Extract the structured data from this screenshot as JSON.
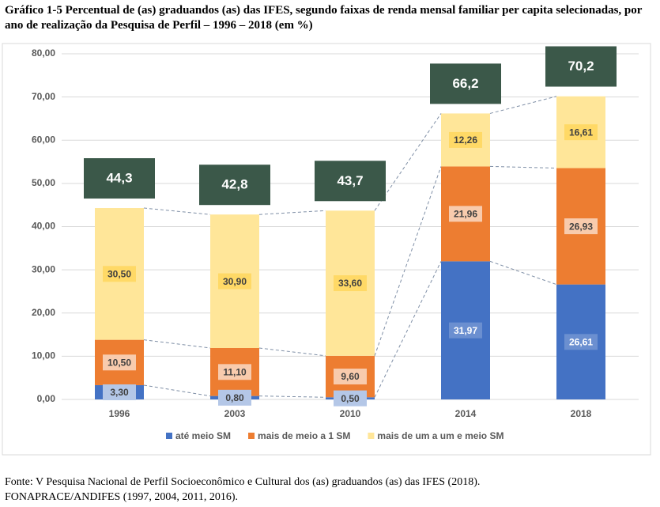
{
  "chart_data": {
    "type": "stacked-bar",
    "title": "Gráfico 1-5 Percentual  de (as) graduandos (as) das IFES, segundo faixas de renda mensal familiar per capita selecionadas, por ano de realização da Pesquisa de Perfil – 1996 – 2018 (em %)",
    "categories": [
      "1996",
      "2003",
      "2010",
      "2014",
      "2018"
    ],
    "series": [
      {
        "name": "até meio SM",
        "color": "#4472c4",
        "label_color": "#b4c7e7",
        "values": [
          3.3,
          0.8,
          0.5,
          31.97,
          26.61
        ],
        "value_labels": [
          "3,30",
          "0,80",
          "0,50",
          "31,97",
          "26,61"
        ]
      },
      {
        "name": "mais de meio a 1 SM",
        "color": "#ed7d31",
        "label_color": "#f8cbad",
        "values": [
          10.5,
          11.1,
          9.6,
          21.96,
          26.93
        ],
        "value_labels": [
          "10,50",
          "11,10",
          "9,60",
          "21,96",
          "26,93"
        ]
      },
      {
        "name": "mais de um a um e meio SM",
        "color": "#ffe699",
        "label_color": "#ffd966",
        "values": [
          30.5,
          30.9,
          33.6,
          12.26,
          16.61
        ],
        "value_labels": [
          "30,50",
          "30,90",
          "33,60",
          "12,26",
          "16,61"
        ]
      }
    ],
    "totals": {
      "color": "#3b5849",
      "values": [
        44.3,
        42.8,
        43.7,
        66.2,
        70.2
      ],
      "value_labels": [
        "44,3",
        "42,8",
        "43,7",
        "66,2",
        "70,2"
      ]
    },
    "ylim": [
      0,
      80
    ],
    "yticks": [
      {
        "value": 0,
        "label": "0,00"
      },
      {
        "value": 10,
        "label": "10,00"
      },
      {
        "value": 20,
        "label": "20,00"
      },
      {
        "value": 30,
        "label": "30,00"
      },
      {
        "value": 40,
        "label": "40,00"
      },
      {
        "value": 50,
        "label": "50,00"
      },
      {
        "value": 60,
        "label": "60,00"
      },
      {
        "value": 70,
        "label": "70,00"
      },
      {
        "value": 80,
        "label": "80,00"
      }
    ],
    "grid": true,
    "legend": "bottom",
    "source": [
      "Fonte: V Pesquisa Nacional de Perfil Socioeconômico e Cultural dos (as) graduandos (as) das IFES (2018).",
      "FONAPRACE/ANDIFES (1997, 2004, 2011, 2016)."
    ]
  }
}
